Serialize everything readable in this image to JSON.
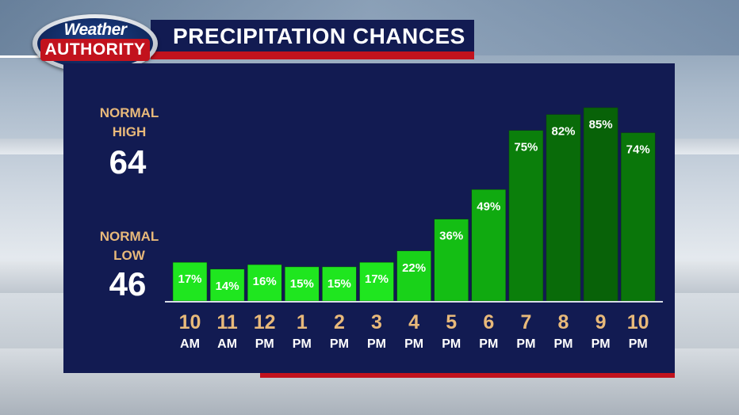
{
  "header": {
    "logo_top": "Weather",
    "logo_bottom": "AUTHORITY",
    "title": "PRECIPITATION CHANCES"
  },
  "normals": {
    "high_label_1": "NORMAL",
    "high_label_2": "HIGH",
    "high_value": "64",
    "low_label_1": "NORMAL",
    "low_label_2": "LOW",
    "low_value": "46"
  },
  "colors": {
    "panel": "#121b52",
    "accent_red": "#c2121d",
    "label_tan": "#e8b97a"
  },
  "chart_data": {
    "type": "bar",
    "title": "PRECIPITATION CHANCES",
    "categories": [
      "10 AM",
      "11 AM",
      "12 PM",
      "1 PM",
      "2 PM",
      "3 PM",
      "4 PM",
      "5 PM",
      "6 PM",
      "7 PM",
      "8 PM",
      "9 PM",
      "10 PM"
    ],
    "hours": [
      "10",
      "11",
      "12",
      "1",
      "2",
      "3",
      "4",
      "5",
      "6",
      "7",
      "8",
      "9",
      "10"
    ],
    "periods": [
      "AM",
      "AM",
      "PM",
      "PM",
      "PM",
      "PM",
      "PM",
      "PM",
      "PM",
      "PM",
      "PM",
      "PM",
      "PM"
    ],
    "values": [
      17,
      14,
      16,
      15,
      15,
      17,
      22,
      36,
      49,
      75,
      82,
      85,
      74
    ],
    "labels": [
      "17%",
      "14%",
      "16%",
      "15%",
      "15%",
      "17%",
      "22%",
      "36%",
      "49%",
      "75%",
      "82%",
      "85%",
      "74%"
    ],
    "bar_colors": [
      "#1fe61f",
      "#1fe61f",
      "#1fe61f",
      "#1fe61f",
      "#1fe61f",
      "#1fe61f",
      "#19d219",
      "#14be14",
      "#10aa10",
      "#0b7f0b",
      "#096b09",
      "#086208",
      "#0a760a"
    ],
    "xlabel": "",
    "ylabel": "",
    "ylim": [
      0,
      100
    ],
    "grid": false,
    "legend": "none"
  }
}
